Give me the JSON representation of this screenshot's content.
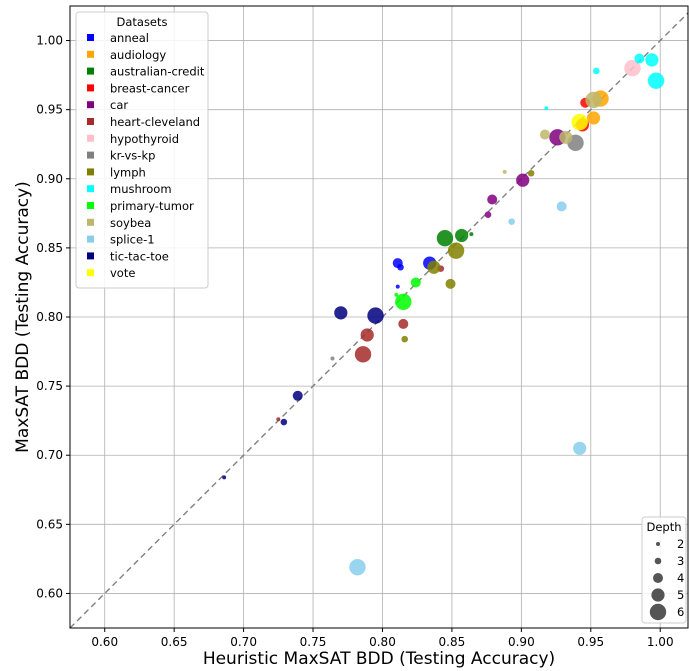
{
  "chart_data": {
    "type": "scatter",
    "title": "",
    "xlabel": "Heuristic MaxSAT BDD (Testing Accuracy)",
    "ylabel": "MaxSAT BDD (Testing Accuracy)",
    "xlim": [
      0.575,
      1.02
    ],
    "ylim": [
      0.575,
      1.025
    ],
    "xticks": [
      "0.60",
      "0.65",
      "0.70",
      "0.75",
      "0.80",
      "0.85",
      "0.90",
      "0.95",
      "1.00"
    ],
    "yticks": [
      "0.60",
      "0.65",
      "0.70",
      "0.75",
      "0.80",
      "0.85",
      "0.90",
      "0.95",
      "1.00"
    ],
    "grid": true,
    "reference_line": "y = x (dashed gray)",
    "legend": {
      "title": "Datasets",
      "placement": "top-left",
      "entries": [
        "anneal",
        "audiology",
        "australian-credit",
        "breast-cancer",
        "car",
        "heart-cleveland",
        "hypothyroid",
        "kr-vs-kp",
        "lymph",
        "mushroom",
        "primary-tumor",
        "soybea",
        "splice-1",
        "tic-tac-toe",
        "vote"
      ]
    },
    "size_legend": {
      "title": "Depth",
      "placement": "bottom-right",
      "entries": [
        "2",
        "3",
        "4",
        "5",
        "6"
      ]
    },
    "series": [
      {
        "name": "anneal",
        "color": "#0000ff",
        "points": [
          {
            "x": 0.811,
            "y": 0.822,
            "depth": 2
          },
          {
            "x": 0.813,
            "y": 0.836,
            "depth": 3
          },
          {
            "x": 0.811,
            "y": 0.839,
            "depth": 4
          },
          {
            "x": 0.834,
            "y": 0.839,
            "depth": 5
          }
        ]
      },
      {
        "name": "audiology",
        "color": "#ffa500",
        "points": [
          {
            "x": 0.952,
            "y": 0.944,
            "depth": 5
          },
          {
            "x": 0.957,
            "y": 0.958,
            "depth": 6
          }
        ]
      },
      {
        "name": "australian-credit",
        "color": "#008000",
        "points": [
          {
            "x": 0.864,
            "y": 0.86,
            "depth": 2
          },
          {
            "x": 0.857,
            "y": 0.859,
            "depth": 5
          },
          {
            "x": 0.845,
            "y": 0.857,
            "depth": 6
          }
        ]
      },
      {
        "name": "breast-cancer",
        "color": "#ff0000",
        "points": [
          {
            "x": 0.946,
            "y": 0.955,
            "depth": 4
          },
          {
            "x": 0.944,
            "y": 0.939,
            "depth": 5
          }
        ]
      },
      {
        "name": "car",
        "color": "#800080",
        "points": [
          {
            "x": 0.876,
            "y": 0.874,
            "depth": 3
          },
          {
            "x": 0.879,
            "y": 0.885,
            "depth": 4
          },
          {
            "x": 0.901,
            "y": 0.899,
            "depth": 5
          },
          {
            "x": 0.926,
            "y": 0.93,
            "depth": 6
          }
        ]
      },
      {
        "name": "heart-cleveland",
        "color": "#a52a2a",
        "points": [
          {
            "x": 0.725,
            "y": 0.726,
            "depth": 2
          },
          {
            "x": 0.842,
            "y": 0.835,
            "depth": 3
          },
          {
            "x": 0.815,
            "y": 0.795,
            "depth": 4
          },
          {
            "x": 0.789,
            "y": 0.787,
            "depth": 5
          },
          {
            "x": 0.786,
            "y": 0.773,
            "depth": 6
          }
        ]
      },
      {
        "name": "hypothyroid",
        "color": "#ffc0cb",
        "points": [
          {
            "x": 0.98,
            "y": 0.98,
            "depth": 6
          }
        ]
      },
      {
        "name": "kr-vs-kp",
        "color": "#808080",
        "points": [
          {
            "x": 0.764,
            "y": 0.77,
            "depth": 2
          },
          {
            "x": 0.939,
            "y": 0.926,
            "depth": 6
          }
        ]
      },
      {
        "name": "lymph",
        "color": "#808000",
        "points": [
          {
            "x": 0.816,
            "y": 0.784,
            "depth": 3
          },
          {
            "x": 0.849,
            "y": 0.824,
            "depth": 4
          },
          {
            "x": 0.837,
            "y": 0.836,
            "depth": 5
          },
          {
            "x": 0.853,
            "y": 0.848,
            "depth": 6
          },
          {
            "x": 0.907,
            "y": 0.904,
            "depth": 3
          }
        ]
      },
      {
        "name": "mushroom",
        "color": "#00ffff",
        "points": [
          {
            "x": 0.918,
            "y": 0.951,
            "depth": 2
          },
          {
            "x": 0.954,
            "y": 0.978,
            "depth": 3
          },
          {
            "x": 0.985,
            "y": 0.987,
            "depth": 4
          },
          {
            "x": 0.994,
            "y": 0.986,
            "depth": 5
          },
          {
            "x": 0.997,
            "y": 0.971,
            "depth": 6
          }
        ]
      },
      {
        "name": "primary-tumor",
        "color": "#00ff00",
        "points": [
          {
            "x": 0.81,
            "y": 0.816,
            "depth": 2
          },
          {
            "x": 0.824,
            "y": 0.825,
            "depth": 4
          },
          {
            "x": 0.815,
            "y": 0.811,
            "depth": 6
          }
        ]
      },
      {
        "name": "soybea",
        "color": "#bdb76b",
        "points": [
          {
            "x": 0.888,
            "y": 0.905,
            "depth": 2
          },
          {
            "x": 0.917,
            "y": 0.932,
            "depth": 4
          },
          {
            "x": 0.932,
            "y": 0.93,
            "depth": 5
          },
          {
            "x": 0.952,
            "y": 0.957,
            "depth": 6
          }
        ]
      },
      {
        "name": "splice-1",
        "color": "#87ceeb",
        "points": [
          {
            "x": 0.893,
            "y": 0.869,
            "depth": 3
          },
          {
            "x": 0.929,
            "y": 0.88,
            "depth": 4
          },
          {
            "x": 0.942,
            "y": 0.705,
            "depth": 5
          },
          {
            "x": 0.782,
            "y": 0.619,
            "depth": 6
          }
        ]
      },
      {
        "name": "tic-tac-toe",
        "color": "#000080",
        "points": [
          {
            "x": 0.686,
            "y": 0.684,
            "depth": 2
          },
          {
            "x": 0.729,
            "y": 0.724,
            "depth": 3
          },
          {
            "x": 0.739,
            "y": 0.743,
            "depth": 4
          },
          {
            "x": 0.77,
            "y": 0.803,
            "depth": 5
          },
          {
            "x": 0.795,
            "y": 0.801,
            "depth": 6
          }
        ]
      },
      {
        "name": "vote",
        "color": "#ffff00",
        "points": [
          {
            "x": 0.942,
            "y": 0.941,
            "depth": 6
          }
        ]
      }
    ]
  }
}
